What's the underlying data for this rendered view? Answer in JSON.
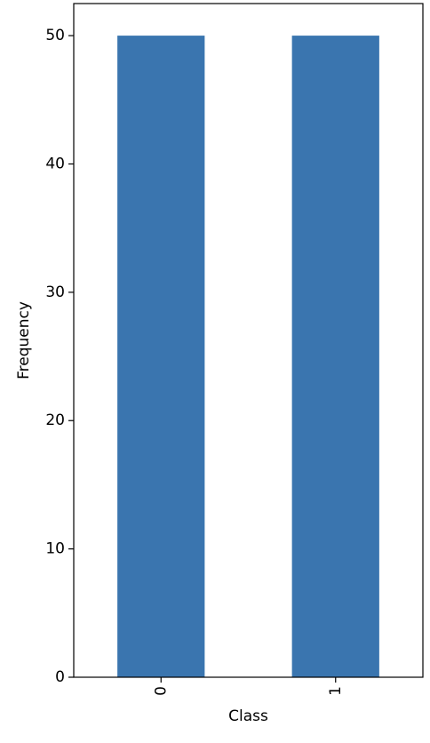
{
  "chart_data": {
    "type": "bar",
    "categories": [
      "0",
      "1"
    ],
    "values": [
      50,
      50
    ],
    "title": "",
    "xlabel": "Class",
    "ylabel": "Frequency",
    "ylim": [
      0,
      52.5
    ],
    "yticks": [
      0,
      10,
      20,
      30,
      40,
      50
    ],
    "grid": false,
    "bar_color": "#3a75af",
    "x_tick_rotation": "vertical"
  }
}
